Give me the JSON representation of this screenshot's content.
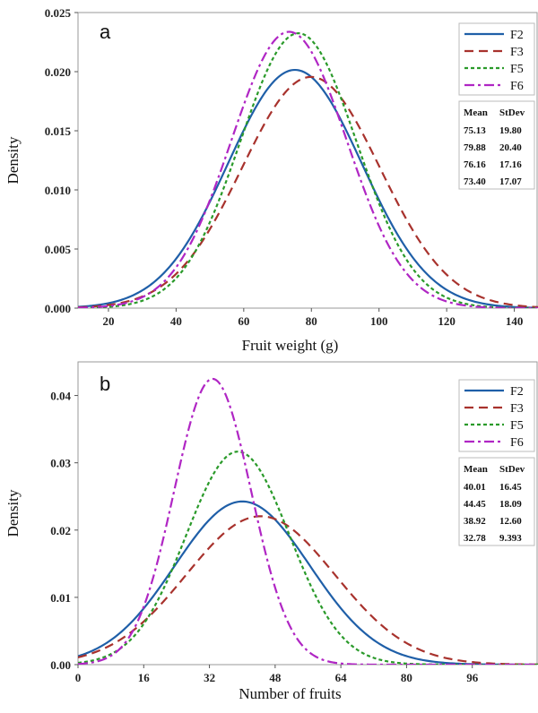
{
  "chart_data": [
    {
      "type": "line",
      "panel_label": "a",
      "xlabel": "Fruit weight (g)",
      "ylabel": "Density",
      "xlim": [
        11,
        147
      ],
      "ylim": [
        0,
        0.025
      ],
      "xticks": [
        20,
        40,
        60,
        80,
        100,
        120,
        140
      ],
      "xtick_labels": [
        "20",
        "40",
        "60",
        "80",
        "100",
        "120",
        "140"
      ],
      "yticks": [
        0,
        0.005,
        0.01,
        0.015,
        0.02,
        0.025
      ],
      "ytick_labels": [
        "0.000",
        "0.005",
        "0.010",
        "0.015",
        "0.020",
        "0.025"
      ],
      "grid": false,
      "legend_position": "top-right",
      "series": [
        {
          "name": "F2",
          "mean": 75.13,
          "sd": 19.8,
          "color": "#1f5fa8",
          "dash": "solid"
        },
        {
          "name": "F3",
          "mean": 79.88,
          "sd": 20.4,
          "color": "#a8322d",
          "dash": "dashed"
        },
        {
          "name": "F5",
          "mean": 76.16,
          "sd": 17.16,
          "color": "#2a9a2a",
          "dash": "dotted"
        },
        {
          "name": "F6",
          "mean": 73.4,
          "sd": 17.07,
          "color": "#b026c4",
          "dash": "dashdot"
        }
      ],
      "stats_table": {
        "headers": [
          "Mean",
          "StDev"
        ],
        "rows": [
          [
            "75.13",
            "19.80"
          ],
          [
            "79.88",
            "20.40"
          ],
          [
            "76.16",
            "17.16"
          ],
          [
            "73.40",
            "17.07"
          ]
        ]
      }
    },
    {
      "type": "line",
      "panel_label": "b",
      "xlabel": "Number of fruits",
      "ylabel": "Density",
      "xlim": [
        0,
        112
      ],
      "ylim": [
        0,
        0.045
      ],
      "xticks": [
        0,
        16,
        32,
        48,
        64,
        80,
        96
      ],
      "xtick_labels": [
        "0",
        "16",
        "32",
        "48",
        "64",
        "80",
        "96"
      ],
      "yticks": [
        0,
        0.01,
        0.02,
        0.03,
        0.04
      ],
      "ytick_labels": [
        "0.00",
        "0.01",
        "0.02",
        "0.03",
        "0.04"
      ],
      "grid": false,
      "legend_position": "top-right",
      "series": [
        {
          "name": "F2",
          "mean": 40.01,
          "sd": 16.45,
          "color": "#1f5fa8",
          "dash": "solid"
        },
        {
          "name": "F3",
          "mean": 44.45,
          "sd": 18.09,
          "color": "#a8322d",
          "dash": "dashed"
        },
        {
          "name": "F5",
          "mean": 38.92,
          "sd": 12.6,
          "color": "#2a9a2a",
          "dash": "dotted"
        },
        {
          "name": "F6",
          "mean": 32.78,
          "sd": 9.393,
          "color": "#b026c4",
          "dash": "dashdot"
        }
      ],
      "stats_table": {
        "headers": [
          "Mean",
          "StDev"
        ],
        "rows": [
          [
            "40.01",
            "16.45"
          ],
          [
            "44.45",
            "18.09"
          ],
          [
            "38.92",
            "12.60"
          ],
          [
            "32.78",
            "9.393"
          ]
        ]
      }
    }
  ]
}
